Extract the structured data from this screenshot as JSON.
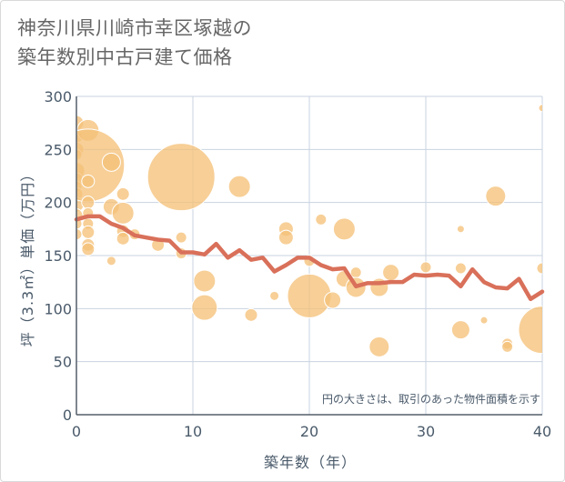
{
  "title_lines": [
    "神奈川県川崎市幸区塚越の",
    "築年数別中古戸建て価格"
  ],
  "chart_data": {
    "type": "scatter",
    "title": "神奈川県川崎市幸区塚越の築年数別中古戸建て価格",
    "xlabel": "築年数（年）",
    "ylabel": "坪（3.3㎡）単価（万円）",
    "xlim": [
      0,
      40
    ],
    "ylim": [
      0,
      300
    ],
    "xticks": [
      0,
      10,
      20,
      30,
      40
    ],
    "yticks": [
      0,
      50,
      100,
      150,
      200,
      250,
      300
    ],
    "grid": true,
    "note": "円の大きさは、取引のあった物件面積を示す",
    "colors": {
      "bubble_fill": "#f5c27a",
      "bubble_stroke": "#ffffff",
      "line": "#d9705a",
      "grid": "#c9d3e0",
      "axis_text": "#4a5a6a",
      "title": "#666666"
    },
    "bubbles": [
      {
        "x": 0,
        "y": 275,
        "r": 8
      },
      {
        "x": 0,
        "y": 262,
        "r": 7
      },
      {
        "x": 0,
        "y": 250,
        "r": 8
      },
      {
        "x": 0,
        "y": 245,
        "r": 6
      },
      {
        "x": 0,
        "y": 230,
        "r": 9
      },
      {
        "x": 0,
        "y": 222,
        "r": 7
      },
      {
        "x": 0,
        "y": 215,
        "r": 6
      },
      {
        "x": 0,
        "y": 208,
        "r": 7
      },
      {
        "x": 0,
        "y": 198,
        "r": 8
      },
      {
        "x": 0,
        "y": 188,
        "r": 7
      },
      {
        "x": 0,
        "y": 180,
        "r": 6
      },
      {
        "x": 0,
        "y": 170,
        "r": 6
      },
      {
        "x": 1,
        "y": 268,
        "r": 12
      },
      {
        "x": 1,
        "y": 235,
        "r": 40
      },
      {
        "x": 1,
        "y": 220,
        "r": 7
      },
      {
        "x": 1,
        "y": 200,
        "r": 7
      },
      {
        "x": 1,
        "y": 190,
        "r": 6
      },
      {
        "x": 1,
        "y": 180,
        "r": 6
      },
      {
        "x": 1,
        "y": 172,
        "r": 7
      },
      {
        "x": 1,
        "y": 160,
        "r": 7
      },
      {
        "x": 1,
        "y": 156,
        "r": 7
      },
      {
        "x": 3,
        "y": 238,
        "r": 10
      },
      {
        "x": 3,
        "y": 196,
        "r": 9
      },
      {
        "x": 3,
        "y": 145,
        "r": 5
      },
      {
        "x": 4,
        "y": 208,
        "r": 7
      },
      {
        "x": 4,
        "y": 190,
        "r": 12
      },
      {
        "x": 4,
        "y": 173,
        "r": 7
      },
      {
        "x": 4,
        "y": 166,
        "r": 7
      },
      {
        "x": 5,
        "y": 170,
        "r": 6
      },
      {
        "x": 7,
        "y": 160,
        "r": 7
      },
      {
        "x": 9,
        "y": 224,
        "r": 37
      },
      {
        "x": 9,
        "y": 167,
        "r": 6
      },
      {
        "x": 9,
        "y": 152,
        "r": 6
      },
      {
        "x": 11,
        "y": 126,
        "r": 12
      },
      {
        "x": 11,
        "y": 101,
        "r": 14
      },
      {
        "x": 14,
        "y": 215,
        "r": 12
      },
      {
        "x": 15,
        "y": 94,
        "r": 7
      },
      {
        "x": 17,
        "y": 112,
        "r": 5
      },
      {
        "x": 18,
        "y": 175,
        "r": 8
      },
      {
        "x": 18,
        "y": 167,
        "r": 8
      },
      {
        "x": 20,
        "y": 112,
        "r": 24
      },
      {
        "x": 20,
        "y": 145,
        "r": 6
      },
      {
        "x": 21,
        "y": 184,
        "r": 6
      },
      {
        "x": 22,
        "y": 108,
        "r": 9
      },
      {
        "x": 23,
        "y": 175,
        "r": 12
      },
      {
        "x": 23,
        "y": 128,
        "r": 9
      },
      {
        "x": 24,
        "y": 134,
        "r": 6
      },
      {
        "x": 24,
        "y": 120,
        "r": 11
      },
      {
        "x": 26,
        "y": 120,
        "r": 10
      },
      {
        "x": 26,
        "y": 64,
        "r": 11
      },
      {
        "x": 27,
        "y": 134,
        "r": 9
      },
      {
        "x": 30,
        "y": 139,
        "r": 6
      },
      {
        "x": 33,
        "y": 175,
        "r": 4
      },
      {
        "x": 33,
        "y": 138,
        "r": 6
      },
      {
        "x": 33,
        "y": 80,
        "r": 10
      },
      {
        "x": 35,
        "y": 89,
        "r": 4
      },
      {
        "x": 36,
        "y": 206,
        "r": 11
      },
      {
        "x": 37,
        "y": 67,
        "r": 6
      },
      {
        "x": 37,
        "y": 64,
        "r": 6
      },
      {
        "x": 40,
        "y": 289,
        "r": 4
      },
      {
        "x": 40,
        "y": 138,
        "r": 6
      },
      {
        "x": 40,
        "y": 80,
        "r": 26
      }
    ],
    "trend": {
      "x": [
        0,
        1,
        2,
        3,
        4,
        5,
        6,
        7,
        8,
        9,
        10,
        11,
        12,
        13,
        14,
        15,
        16,
        17,
        18,
        19,
        20,
        21,
        22,
        23,
        24,
        25,
        26,
        27,
        28,
        29,
        30,
        31,
        32,
        33,
        34,
        35,
        36,
        37,
        38,
        39,
        40
      ],
      "y": [
        184,
        187,
        187,
        180,
        176,
        169,
        167,
        165,
        164,
        153,
        153,
        151,
        161,
        148,
        155,
        146,
        148,
        135,
        141,
        148,
        148,
        141,
        137,
        138,
        121,
        124,
        124,
        125,
        125,
        132,
        131,
        132,
        131,
        121,
        137,
        125,
        120,
        119,
        128,
        109,
        116
      ]
    }
  }
}
